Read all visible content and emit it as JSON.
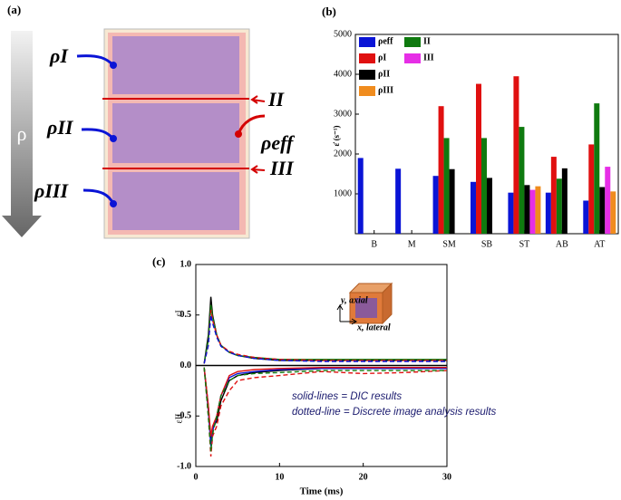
{
  "diagram": {
    "panel_label": "(a)",
    "arrow_label": "ρ",
    "rho_1": "ρI",
    "rho_2": "ρII",
    "rho_3": "ρIII",
    "interface_1": "II",
    "interface_2": "III",
    "rho_eff": "ρeff"
  },
  "chart_data": [
    {
      "type": "bar",
      "panel_label": "(b)",
      "y_label": "ε̇ (s⁻¹)",
      "categories": [
        "B",
        "M",
        "SM",
        "SB",
        "ST",
        "AB",
        "AT"
      ],
      "ylim": [
        0,
        5000
      ],
      "yticks": [
        1000,
        2000,
        3000,
        4000,
        5000
      ],
      "series": [
        {
          "name": "ρeff",
          "color": "#0a14d6",
          "values": [
            1900,
            1630,
            1450,
            1300,
            1030,
            1030,
            830
          ]
        },
        {
          "name": "ρI",
          "color": "#e01010",
          "values": [
            null,
            null,
            3200,
            3760,
            3950,
            1930,
            2240
          ]
        },
        {
          "name": "II",
          "color": "#0f7a0f",
          "values": [
            null,
            null,
            2400,
            2400,
            2680,
            1380,
            3270
          ]
        },
        {
          "name": "ρII",
          "color": "#000000",
          "values": [
            null,
            null,
            1620,
            1400,
            1220,
            1640,
            1170
          ]
        },
        {
          "name": "III",
          "color": "#e62ee6",
          "values": [
            null,
            null,
            null,
            null,
            1100,
            null,
            1680
          ]
        },
        {
          "name": "ρIII",
          "color": "#f08c1e",
          "values": [
            null,
            null,
            null,
            null,
            1190,
            null,
            1060
          ]
        }
      ]
    },
    {
      "type": "line",
      "panel_label": "(c)",
      "x_label": "Time (ms)",
      "y_label_top": "εI",
      "y_label_bottom": "εII",
      "xlim": [
        0,
        30
      ],
      "xticks": [
        0,
        10,
        20,
        30
      ],
      "ylim": [
        -1,
        1
      ],
      "yticks": [
        {
          "value": -1,
          "label": "-1.0"
        },
        {
          "value": -0.5,
          "label": "-0.5"
        },
        {
          "value": 0,
          "label": "0.0"
        },
        {
          "value": 0.5,
          "label": "0.5"
        },
        {
          "value": 1,
          "label": "1.0"
        }
      ],
      "annotations": [
        "y, axial",
        "x, lateral",
        "solid-lines = DIC results",
        "dotted-line = Discrete image analysis results"
      ],
      "x": [
        1,
        1.5,
        1.8,
        2,
        2.5,
        3,
        4,
        5,
        7,
        10,
        15,
        20,
        25,
        30
      ],
      "series": [
        {
          "color": "#000000",
          "dashed": false,
          "values": [
            0.02,
            0.3,
            0.68,
            0.5,
            0.3,
            0.2,
            0.13,
            0.1,
            0.07,
            0.05,
            0.05,
            0.05,
            0.05,
            0.05
          ]
        },
        {
          "color": "#0f7a0f",
          "dashed": false,
          "values": [
            0.02,
            0.25,
            0.6,
            0.48,
            0.3,
            0.2,
            0.13,
            0.1,
            0.08,
            0.06,
            0.06,
            0.06,
            0.06,
            0.06
          ]
        },
        {
          "color": "#e01010",
          "dashed": true,
          "values": [
            0.02,
            0.2,
            0.55,
            0.45,
            0.3,
            0.2,
            0.14,
            0.11,
            0.08,
            0.06,
            0.05,
            0.05,
            0.05,
            0.05
          ]
        },
        {
          "color": "#0a14d6",
          "dashed": true,
          "values": [
            0.02,
            0.2,
            0.5,
            0.42,
            0.28,
            0.19,
            0.13,
            0.1,
            0.07,
            0.05,
            0.04,
            0.04,
            0.04,
            0.04
          ]
        },
        {
          "color": "#000000",
          "dashed": false,
          "values": [
            -0.02,
            -0.4,
            -0.75,
            -0.62,
            -0.55,
            -0.35,
            -0.15,
            -0.1,
            -0.07,
            -0.05,
            -0.03,
            -0.03,
            -0.03,
            -0.03
          ]
        },
        {
          "color": "#0a14d6",
          "dashed": false,
          "values": [
            -0.02,
            -0.45,
            -0.8,
            -0.65,
            -0.5,
            -0.3,
            -0.12,
            -0.08,
            -0.06,
            -0.04,
            -0.03,
            -0.03,
            -0.03,
            -0.03
          ]
        },
        {
          "color": "#e01010",
          "dashed": false,
          "values": [
            -0.02,
            -0.4,
            -0.7,
            -0.6,
            -0.5,
            -0.3,
            -0.1,
            -0.06,
            -0.04,
            -0.03,
            -0.02,
            -0.02,
            -0.02,
            -0.02
          ]
        },
        {
          "color": "#e01010",
          "dashed": true,
          "values": [
            -0.02,
            -0.5,
            -0.9,
            -0.7,
            -0.6,
            -0.4,
            -0.25,
            -0.15,
            -0.12,
            -0.1,
            -0.06,
            -0.08,
            -0.07,
            -0.05
          ]
        },
        {
          "color": "#0f7a0f",
          "dashed": true,
          "values": [
            -0.02,
            -0.5,
            -0.85,
            -0.68,
            -0.5,
            -0.3,
            -0.15,
            -0.1,
            -0.08,
            -0.07,
            -0.05,
            -0.05,
            -0.05,
            -0.05
          ]
        }
      ]
    }
  ]
}
